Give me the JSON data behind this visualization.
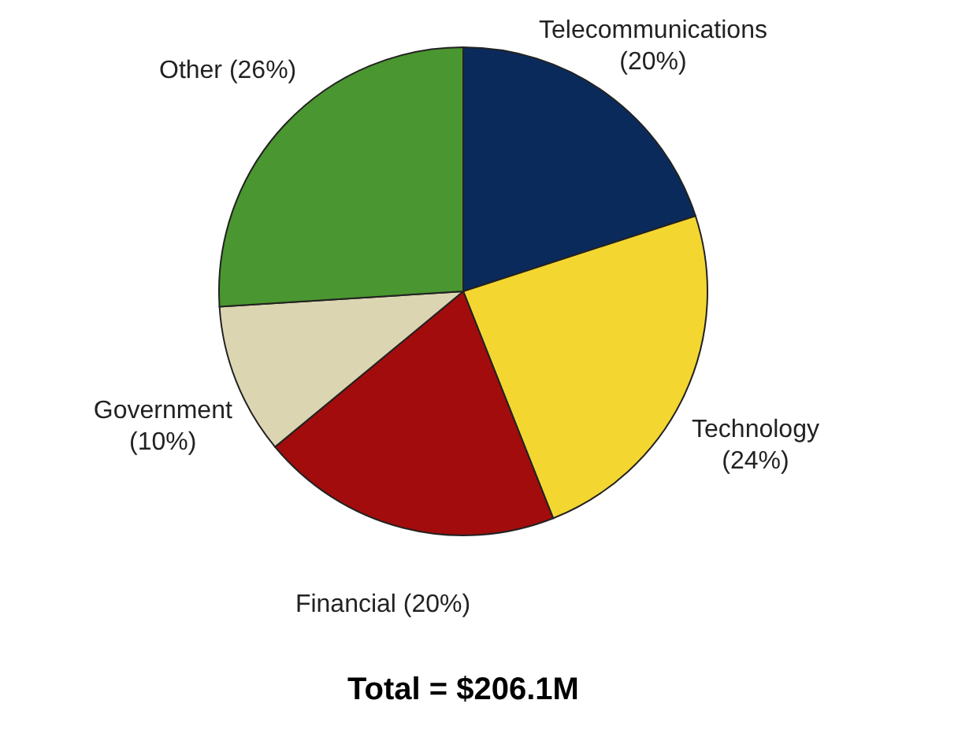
{
  "chart_data": {
    "type": "pie",
    "categories": [
      "Telecommunications",
      "Technology",
      "Financial",
      "Government",
      "Other"
    ],
    "values": [
      20,
      24,
      20,
      10,
      26
    ],
    "value_labels": [
      "(20%)",
      "(24%)",
      "(20%)",
      "(10%)",
      "(26%)"
    ],
    "colors": [
      "#0b2a5c",
      "#f4d631",
      "#a30c0c",
      "#dbd5b2",
      "#4a9630"
    ],
    "annotations": [
      "Total = $206.1M"
    ]
  }
}
